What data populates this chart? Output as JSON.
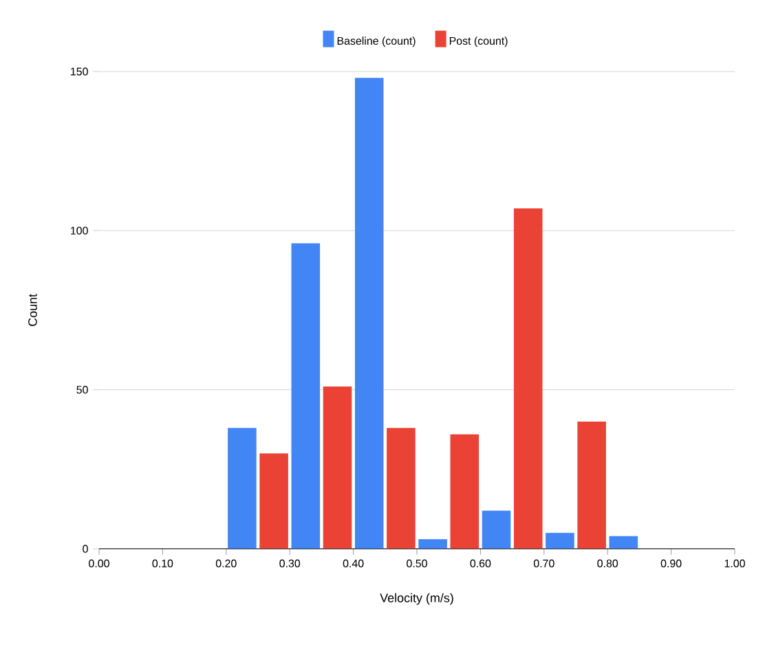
{
  "chart_data": {
    "type": "bar",
    "xlabel": "Velocity (m/s)",
    "ylabel": "Count",
    "x": [
      0.25,
      0.35,
      0.45,
      0.55,
      0.65,
      0.75,
      0.85
    ],
    "series": [
      {
        "name": "Baseline (count)",
        "color": "#4285f4",
        "values": [
          38,
          96,
          148,
          3,
          12,
          5,
          4
        ]
      },
      {
        "name": "Post (count)",
        "color": "#ea4335",
        "values": [
          30,
          51,
          38,
          36,
          107,
          40,
          null
        ]
      }
    ],
    "xlim": [
      0,
      1
    ],
    "ylim": [
      0,
      150
    ],
    "xticks": [
      {
        "value": 0,
        "label": "0.00"
      },
      {
        "value": 0.1,
        "label": "0.10"
      },
      {
        "value": 0.2,
        "label": "0.20"
      },
      {
        "value": 0.3,
        "label": "0.30"
      },
      {
        "value": 0.4,
        "label": "0.40"
      },
      {
        "value": 0.5,
        "label": "0.50"
      },
      {
        "value": 0.6,
        "label": "0.60"
      },
      {
        "value": 0.7,
        "label": "0.70"
      },
      {
        "value": 0.8,
        "label": "0.80"
      },
      {
        "value": 0.9,
        "label": "0.90"
      },
      {
        "value": 1,
        "label": "1.00"
      }
    ],
    "yticks": [
      0,
      50,
      100,
      150
    ],
    "grid": "y",
    "legend": "top"
  }
}
